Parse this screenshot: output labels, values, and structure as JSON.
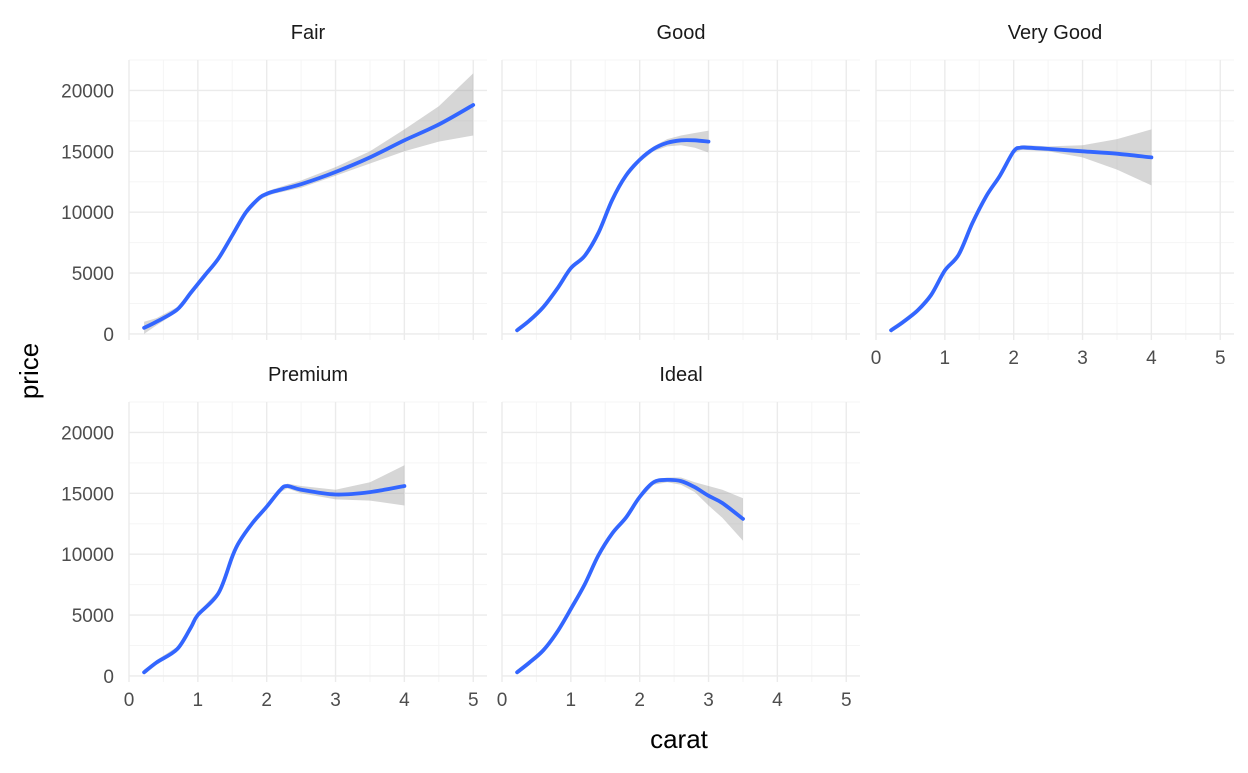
{
  "chart_data": {
    "type": "line",
    "smooth_with_confidence_band": true,
    "xlabel": "carat",
    "ylabel": "price",
    "xlim": [
      0,
      5.2
    ],
    "ylim": [
      -500,
      22500
    ],
    "x_ticks": [
      0,
      1,
      2,
      3,
      4,
      5
    ],
    "y_ticks": [
      0,
      5000,
      10000,
      15000,
      20000
    ],
    "grid": true,
    "facets": [
      {
        "name": "Fair",
        "x": [
          0.22,
          0.4,
          0.7,
          0.9,
          1.1,
          1.3,
          1.5,
          1.7,
          1.9,
          2.0,
          2.1,
          2.5,
          3.0,
          3.5,
          4.0,
          4.5,
          5.0
        ],
        "y": [
          500,
          1000,
          2000,
          3400,
          4800,
          6200,
          8100,
          10000,
          11200,
          11500,
          11700,
          12300,
          13300,
          14500,
          15900,
          17200,
          18800
        ],
        "ci_lower": [
          0,
          700,
          1800,
          3200,
          4600,
          6000,
          7900,
          9800,
          11000,
          11300,
          11500,
          12000,
          13000,
          14000,
          15000,
          15800,
          16300
        ],
        "ci_upper": [
          1000,
          1300,
          2200,
          3600,
          5000,
          6400,
          8300,
          10200,
          11400,
          11700,
          11900,
          12600,
          13700,
          15000,
          16800,
          18700,
          21400
        ]
      },
      {
        "name": "Good",
        "x": [
          0.22,
          0.4,
          0.6,
          0.8,
          1.0,
          1.2,
          1.4,
          1.6,
          1.8,
          2.0,
          2.2,
          2.4,
          2.6,
          2.8,
          3.0
        ],
        "y": [
          300,
          1100,
          2200,
          3700,
          5400,
          6400,
          8300,
          11000,
          13000,
          14300,
          15200,
          15700,
          15900,
          15900,
          15800
        ],
        "ci_lower": [
          100,
          900,
          2000,
          3500,
          5200,
          6200,
          8100,
          10800,
          12800,
          14100,
          15000,
          15400,
          15500,
          15300,
          14900
        ],
        "ci_upper": [
          500,
          1300,
          2400,
          3900,
          5600,
          6600,
          8500,
          11200,
          13200,
          14500,
          15400,
          16000,
          16300,
          16500,
          16700
        ]
      },
      {
        "name": "Very Good",
        "x": [
          0.22,
          0.4,
          0.6,
          0.8,
          1.0,
          1.2,
          1.4,
          1.6,
          1.8,
          2.0,
          2.1,
          2.2,
          2.5,
          3.0,
          3.5,
          4.0
        ],
        "y": [
          300,
          1000,
          1900,
          3200,
          5200,
          6500,
          9100,
          11300,
          13000,
          15000,
          15300,
          15300,
          15200,
          15000,
          14800,
          14500
        ],
        "ci_lower": [
          100,
          800,
          1700,
          3000,
          5000,
          6300,
          8900,
          11100,
          12800,
          14800,
          15100,
          15100,
          15000,
          14500,
          13500,
          12200
        ],
        "ci_upper": [
          500,
          1200,
          2100,
          3400,
          5400,
          6700,
          9300,
          11500,
          13200,
          15200,
          15500,
          15500,
          15400,
          15500,
          16000,
          16800
        ]
      },
      {
        "name": "Premium",
        "x": [
          0.22,
          0.4,
          0.7,
          0.9,
          1.0,
          1.3,
          1.5,
          1.6,
          1.8,
          2.0,
          2.2,
          2.3,
          2.5,
          3.0,
          3.5,
          4.0
        ],
        "y": [
          300,
          1100,
          2200,
          4000,
          5000,
          6800,
          9800,
          11000,
          12600,
          13900,
          15300,
          15600,
          15300,
          14900,
          15100,
          15600
        ],
        "ci_lower": [
          100,
          900,
          2000,
          3800,
          4800,
          6600,
          9600,
          10800,
          12400,
          13700,
          15100,
          15400,
          15000,
          14500,
          14400,
          14000
        ],
        "ci_upper": [
          500,
          1300,
          2400,
          4200,
          5200,
          7000,
          10000,
          11200,
          12800,
          14100,
          15500,
          15800,
          15600,
          15300,
          15900,
          17300
        ]
      },
      {
        "name": "Ideal",
        "x": [
          0.22,
          0.4,
          0.6,
          0.8,
          1.0,
          1.2,
          1.4,
          1.6,
          1.8,
          2.0,
          2.2,
          2.4,
          2.6,
          2.8,
          3.0,
          3.2,
          3.5
        ],
        "y": [
          300,
          1100,
          2100,
          3600,
          5500,
          7500,
          9900,
          11700,
          13000,
          14700,
          15900,
          16100,
          16000,
          15500,
          14800,
          14200,
          12900
        ],
        "ci_lower": [
          100,
          900,
          1900,
          3400,
          5300,
          7300,
          9700,
          11500,
          12800,
          14500,
          15700,
          15900,
          15700,
          15100,
          14000,
          13000,
          11100
        ],
        "ci_upper": [
          500,
          1300,
          2300,
          3800,
          5700,
          7700,
          10100,
          11900,
          13200,
          14900,
          16100,
          16300,
          16300,
          15900,
          15600,
          15300,
          14600
        ]
      }
    ]
  },
  "colors": {
    "line": "#3366FF",
    "band": "#999999",
    "grid_major": "#EBEBEB",
    "grid_minor": "#F5F5F5",
    "tick_text": "#4D4D4D"
  }
}
